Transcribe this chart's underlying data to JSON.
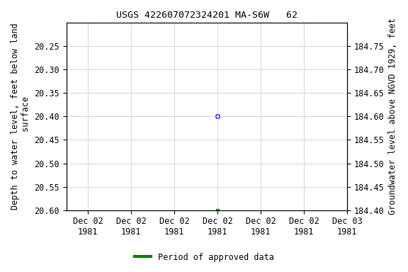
{
  "title": "USGS 422607072324201 MA-S6W   62",
  "ylabel_left": "Depth to water level, feet below land\n surface",
  "ylabel_right": "Groundwater level above NGVD 1929, feet",
  "ylim_left": [
    20.6,
    20.2
  ],
  "ylim_right": [
    184.4,
    184.8
  ],
  "yticks_left": [
    20.25,
    20.3,
    20.35,
    20.4,
    20.45,
    20.5,
    20.55,
    20.6
  ],
  "ytick_labels_left": [
    "20.25",
    "20.30",
    "20.35",
    "20.40",
    "20.45",
    "20.50",
    "20.55",
    "20.60"
  ],
  "yticks_right": [
    184.75,
    184.7,
    184.65,
    184.6,
    184.55,
    184.5,
    184.45,
    184.4
  ],
  "ytick_labels_right": [
    "184.75",
    "184.70",
    "184.65",
    "184.60",
    "184.55",
    "184.50",
    "184.45",
    "184.40"
  ],
  "data_blue_x": 3.5,
  "data_blue_y": 20.4,
  "data_green_x": 3.5,
  "data_green_y": 20.6,
  "legend_label": "Period of approved data",
  "legend_color": "#008000",
  "background_color": "#ffffff",
  "grid_color": "#c8c8c8",
  "tick_fontsize": 8.5,
  "label_fontsize": 8.5,
  "title_fontsize": 9.5,
  "xlim": [
    0,
    6.5
  ],
  "xtick_positions": [
    0.5,
    1.5,
    2.5,
    3.5,
    4.5,
    5.5,
    6.5
  ],
  "xtick_labels": [
    "Dec 02\n1981",
    "Dec 02\n1981",
    "Dec 02\n1981",
    "Dec 02\n1981",
    "Dec 02\n1981",
    "Dec 02\n1981",
    "Dec 03\n1981"
  ]
}
